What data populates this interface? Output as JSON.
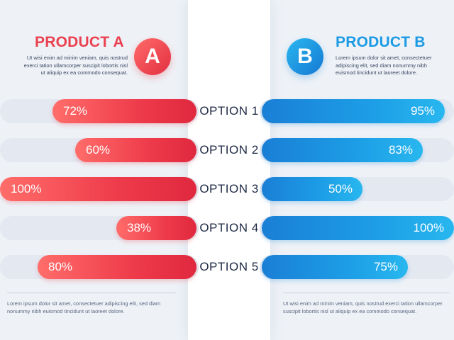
{
  "product_a": {
    "title": "PRODUCT A",
    "badge": "A",
    "description": "Ut wisi enim ad minim veniam, quis nostrud exerci tation ullamcorper suscipit lobortis nisl ut aliquip ex ea commodo consequat.",
    "footnote": "Lorem ipsum dolor sit amet, consectetuer adipiscing elit, sed diam nonummy nibh euismod tincidunt ut laoreet dolore.",
    "color": "#ea4150"
  },
  "product_b": {
    "title": "PRODUCT B",
    "badge": "B",
    "description": "Lorem ipsum dolor sit amet, consectetuer adipiscing elit, sed diam nonummy nibh euismod tincidunt ut laoreet dolore.",
    "footnote": "Ut wisi enim ad minim veniam, quis nostrud exerci tation ullamcorper suscipit lobortis nisl ut aliquip ex ea commodo consequat.",
    "color": "#1b9ae4"
  },
  "chart_data": {
    "type": "bar",
    "categories": [
      "OPTION 1",
      "OPTION 2",
      "OPTION 3",
      "OPTION 4",
      "OPTION 5"
    ],
    "series": [
      {
        "name": "PRODUCT A",
        "values": [
          72,
          60,
          100,
          38,
          80
        ],
        "labels": [
          "72%",
          "60%",
          "100%",
          "38%",
          "80%"
        ],
        "color": "#ea4150"
      },
      {
        "name": "PRODUCT B",
        "values": [
          95,
          83,
          50,
          100,
          75
        ],
        "labels": [
          "95%",
          "83%",
          "50%",
          "100%",
          "75%"
        ],
        "color": "#1b9ae4"
      }
    ],
    "ylim": [
      0,
      100
    ],
    "orientation": "horizontal, mirrored"
  }
}
